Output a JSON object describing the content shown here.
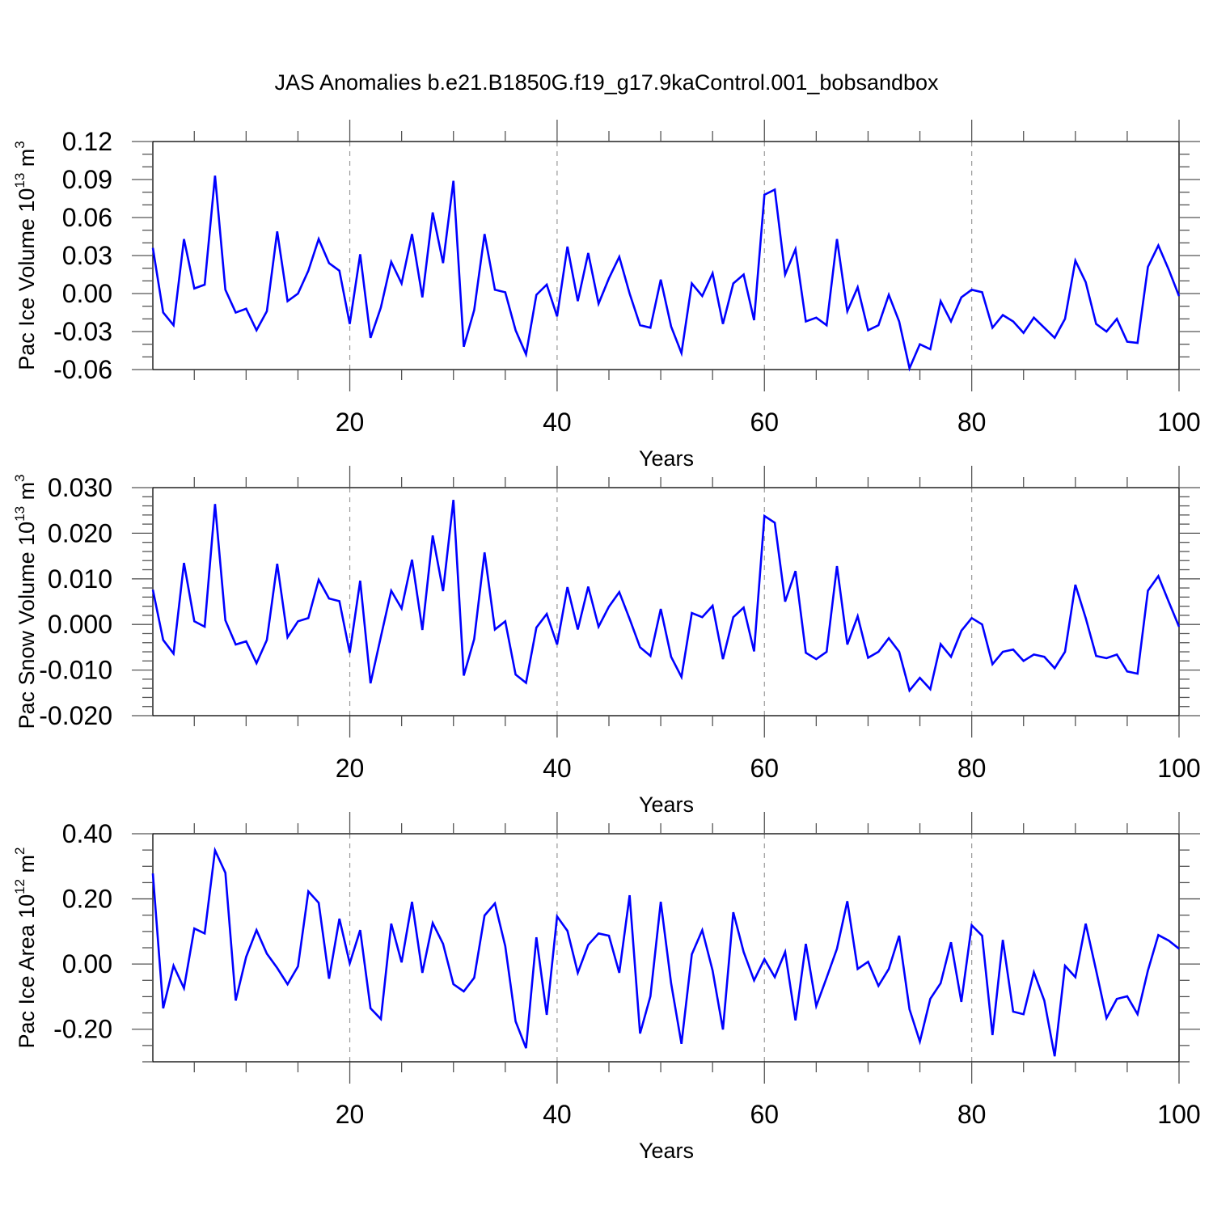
{
  "chart_data": {
    "title": "JAS Anomalies b.e21.B1850G.f19_g17.9kaControl.001_bobsandbox",
    "line_color": "#0000ff",
    "grid": "dashed vertical lines at major x ticks",
    "panels": [
      {
        "type": "line",
        "xlabel": "Years",
        "ylabel": {
          "text": "Pac Ice Volume 10",
          "exp": "13",
          "unit": " m",
          "unit_exp": "3"
        },
        "xlim": [
          1,
          100
        ],
        "ylim": [
          -0.06,
          0.12
        ],
        "xticks": [
          "20",
          "40",
          "60",
          "80",
          "100"
        ],
        "yticks": [
          "0.12",
          "0.09",
          "0.06",
          "0.03",
          "0.00",
          "-0.03",
          "-0.06"
        ],
        "y_major_step": 0.03,
        "y_minor_step": 0.01,
        "x": "1..100",
        "values": [
          0.036,
          -0.015,
          -0.025,
          0.043,
          0.004,
          0.007,
          0.093,
          0.003,
          -0.015,
          -0.012,
          -0.029,
          -0.014,
          0.049,
          -0.006,
          0.0,
          0.018,
          0.043,
          0.024,
          0.018,
          -0.024,
          0.031,
          -0.035,
          -0.011,
          0.025,
          0.008,
          0.047,
          -0.003,
          0.064,
          0.024,
          0.089,
          -0.042,
          -0.013,
          0.047,
          0.003,
          0.001,
          -0.029,
          -0.048,
          -0.001,
          0.007,
          -0.018,
          0.037,
          -0.006,
          0.032,
          -0.008,
          0.012,
          0.029,
          0.0,
          -0.025,
          -0.027,
          0.011,
          -0.026,
          -0.047,
          0.008,
          -0.002,
          0.016,
          -0.024,
          0.008,
          0.015,
          -0.021,
          0.078,
          0.082,
          0.015,
          0.035,
          -0.022,
          -0.019,
          -0.025,
          0.043,
          -0.014,
          0.005,
          -0.029,
          -0.025,
          -0.001,
          -0.022,
          -0.059,
          -0.04,
          -0.044,
          -0.006,
          -0.022,
          -0.003,
          0.003,
          0.001,
          -0.027,
          -0.017,
          -0.022,
          -0.031,
          -0.019,
          -0.027,
          -0.035,
          -0.02,
          0.026,
          0.009,
          -0.024,
          -0.03,
          -0.02,
          -0.038,
          -0.039,
          0.021,
          0.038,
          0.019,
          -0.002
        ]
      },
      {
        "type": "line",
        "xlabel": "Years",
        "ylabel": {
          "text": "Pac Snow Volume 10",
          "exp": "13",
          "unit": " m",
          "unit_exp": "3"
        },
        "xlim": [
          1,
          100
        ],
        "ylim": [
          -0.02,
          0.03
        ],
        "xticks": [
          "20",
          "40",
          "60",
          "80",
          "100"
        ],
        "yticks": [
          "0.030",
          "0.020",
          "0.010",
          "0.000",
          "-0.010",
          "-0.020"
        ],
        "y_major_step": 0.01,
        "y_minor_step": 0.002,
        "x": "1..100",
        "values": [
          0.0076,
          -0.0034,
          -0.0064,
          0.0135,
          0.0007,
          -0.0005,
          0.0264,
          0.0009,
          -0.0044,
          -0.0037,
          -0.0085,
          -0.0034,
          0.0133,
          -0.0028,
          0.0007,
          0.0014,
          0.0098,
          0.0057,
          0.0051,
          -0.0062,
          0.0096,
          -0.0129,
          -0.0027,
          0.0074,
          0.0035,
          0.0142,
          -0.0012,
          0.0195,
          0.0073,
          0.0273,
          -0.0112,
          -0.0032,
          0.0158,
          -0.0011,
          0.0007,
          -0.011,
          -0.0128,
          -0.0007,
          0.0023,
          -0.0044,
          0.0082,
          -0.0011,
          0.0083,
          -0.0005,
          0.0039,
          0.0071,
          0.0012,
          -0.005,
          -0.0069,
          0.0034,
          -0.0071,
          -0.0115,
          0.0025,
          0.0016,
          0.0041,
          -0.0076,
          0.0016,
          0.0037,
          -0.0059,
          0.0238,
          0.0223,
          0.005,
          0.0117,
          -0.0062,
          -0.0076,
          -0.006,
          0.0128,
          -0.0044,
          0.0018,
          -0.0073,
          -0.006,
          -0.003,
          -0.006,
          -0.0145,
          -0.0117,
          -0.0142,
          -0.0043,
          -0.0071,
          -0.0014,
          0.0014,
          0.0,
          -0.0087,
          -0.006,
          -0.0055,
          -0.008,
          -0.0066,
          -0.0071,
          -0.0096,
          -0.006,
          0.0087,
          0.0014,
          -0.0069,
          -0.0074,
          -0.0066,
          -0.0103,
          -0.0108,
          0.0074,
          0.0106,
          0.005,
          -0.0005
        ]
      },
      {
        "type": "line",
        "xlabel": "Years",
        "ylabel": {
          "text": "Pac Ice Area 10",
          "exp": "12",
          "unit": " m",
          "unit_exp": "2"
        },
        "xlim": [
          1,
          100
        ],
        "ylim": [
          -0.3,
          0.4
        ],
        "xticks": [
          "20",
          "40",
          "60",
          "80",
          "100"
        ],
        "yticks": [
          "0.40",
          "0.20",
          "0.00",
          "-0.20"
        ],
        "y_major_step": 0.2,
        "y_minor_step": 0.05,
        "x": "1..100",
        "values": [
          0.278,
          -0.136,
          -0.005,
          -0.074,
          0.109,
          0.094,
          0.349,
          0.28,
          -0.112,
          0.022,
          0.104,
          0.032,
          -0.012,
          -0.062,
          -0.007,
          0.223,
          0.188,
          -0.045,
          0.139,
          0.002,
          0.104,
          -0.136,
          -0.169,
          0.124,
          0.005,
          0.191,
          -0.027,
          0.126,
          0.062,
          -0.062,
          -0.084,
          -0.042,
          0.149,
          0.186,
          0.055,
          -0.176,
          -0.258,
          0.082,
          -0.156,
          0.146,
          0.102,
          -0.027,
          0.059,
          0.094,
          0.087,
          -0.027,
          0.211,
          -0.213,
          -0.099,
          0.191,
          -0.059,
          -0.245,
          0.03,
          0.104,
          -0.02,
          -0.201,
          0.159,
          0.037,
          -0.05,
          0.015,
          -0.04,
          0.037,
          -0.173,
          0.062,
          -0.129,
          -0.042,
          0.047,
          0.193,
          -0.015,
          0.007,
          -0.067,
          -0.015,
          0.087,
          -0.139,
          -0.238,
          -0.107,
          -0.059,
          0.067,
          -0.116,
          0.119,
          0.087,
          -0.218,
          0.074,
          -0.146,
          -0.154,
          -0.025,
          -0.112,
          -0.283,
          -0.005,
          -0.04,
          0.124,
          -0.02,
          -0.166,
          -0.107,
          -0.099,
          -0.154,
          -0.02,
          0.089,
          0.072,
          0.047
        ]
      }
    ]
  }
}
